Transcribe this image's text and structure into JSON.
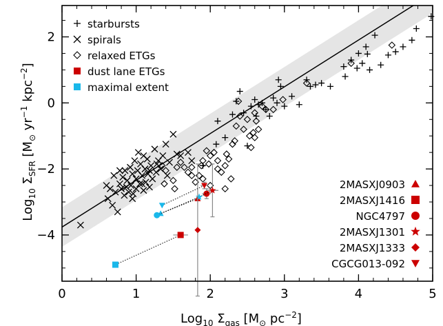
{
  "chart_data": {
    "type": "scatter",
    "title": "",
    "xlabel": {
      "main": "Log",
      "sub": "10",
      "sym": " Σ",
      "symsub": "gas",
      "unit": " [M",
      "odot": "⊙",
      "unit2": " pc",
      "sup": "−2",
      "close": "]"
    },
    "ylabel": {
      "main": "Log",
      "sub": "10",
      "sym": " Σ",
      "symsub": "SFR",
      "unit": " [M",
      "odot": "⊙",
      "unit2": " yr",
      "sup1": "−1",
      "unit3": " kpc",
      "sup2": "−2",
      "close": "]"
    },
    "xlim": [
      0,
      5
    ],
    "ylim": [
      -5.4,
      2.95
    ],
    "xticks": [
      0,
      1,
      2,
      3,
      4,
      5
    ],
    "yticks": [
      -4,
      -2,
      0,
      2
    ],
    "ytick_labels": [
      "−4",
      "−2",
      "0",
      "2"
    ],
    "xticks_minor_step": 0.2,
    "yticks_minor_step": 0.5,
    "fit_line": {
      "x": [
        0,
        5
      ],
      "y": [
        -3.76,
        3.32
      ]
    },
    "scatter_band": {
      "halfwidth": 0.6,
      "color": "#e5e5e5"
    },
    "legend_main": [
      {
        "label": "starbursts",
        "marker": "plus",
        "color": "#000000"
      },
      {
        "label": "spirals",
        "marker": "cross",
        "color": "#000000"
      },
      {
        "label": "relaxed ETGs",
        "marker": "diamond-open",
        "color": "#000000"
      },
      {
        "label": "dust lane ETGs",
        "marker": "square",
        "color": "#cc0000"
      },
      {
        "label": "maximal extent",
        "marker": "square",
        "color": "#1ab8ea"
      }
    ],
    "legend_objects": [
      {
        "label": "2MASXJ0903",
        "marker": "triangle-up"
      },
      {
        "label": "2MASXJ1416",
        "marker": "square"
      },
      {
        "label": "NGC4797",
        "marker": "circle"
      },
      {
        "label": "2MASXJ1301",
        "marker": "star"
      },
      {
        "label": "2MASXJ1333",
        "marker": "diamond"
      },
      {
        "label": "CGCG013-092",
        "marker": "triangle-down"
      }
    ],
    "series": [
      {
        "name": "starbursts",
        "marker": "plus",
        "points": [
          [
            1.9,
            -1.9
          ],
          [
            2.08,
            -1.25
          ],
          [
            2.1,
            -0.55
          ],
          [
            2.2,
            -1.05
          ],
          [
            2.3,
            -0.35
          ],
          [
            2.35,
            0.05
          ],
          [
            2.4,
            0.35
          ],
          [
            2.45,
            -0.3
          ],
          [
            2.5,
            -1.3
          ],
          [
            2.55,
            -0.1
          ],
          [
            2.6,
            0.1
          ],
          [
            2.62,
            -0.4
          ],
          [
            2.65,
            -0.05
          ],
          [
            2.7,
            0.0
          ],
          [
            2.75,
            -0.2
          ],
          [
            2.8,
            -0.4
          ],
          [
            2.85,
            0.15
          ],
          [
            2.9,
            0.0
          ],
          [
            2.92,
            0.7
          ],
          [
            2.95,
            0.5
          ],
          [
            3.0,
            -0.1
          ],
          [
            3.1,
            0.2
          ],
          [
            3.2,
            -0.05
          ],
          [
            3.3,
            0.7
          ],
          [
            3.35,
            0.5
          ],
          [
            3.42,
            0.55
          ],
          [
            3.5,
            0.6
          ],
          [
            3.8,
            1.1
          ],
          [
            3.82,
            0.8
          ],
          [
            3.9,
            1.3
          ],
          [
            4.0,
            1.5
          ],
          [
            4.05,
            1.2
          ],
          [
            4.1,
            1.7
          ],
          [
            4.15,
            1.0
          ],
          [
            4.22,
            2.05
          ],
          [
            4.3,
            1.15
          ],
          [
            4.4,
            1.45
          ],
          [
            4.5,
            1.55
          ],
          [
            4.6,
            1.7
          ],
          [
            4.78,
            2.25
          ],
          [
            4.98,
            2.62
          ],
          [
            3.98,
            1.05
          ],
          [
            4.12,
            1.48
          ],
          [
            3.62,
            0.5
          ],
          [
            4.72,
            1.9
          ]
        ]
      },
      {
        "name": "spirals",
        "marker": "cross",
        "points": [
          [
            0.25,
            -3.7
          ],
          [
            0.6,
            -2.5
          ],
          [
            0.62,
            -2.9
          ],
          [
            0.65,
            -2.6
          ],
          [
            0.68,
            -3.1
          ],
          [
            0.7,
            -2.2
          ],
          [
            0.72,
            -2.7
          ],
          [
            0.75,
            -3.3
          ],
          [
            0.78,
            -2.45
          ],
          [
            0.8,
            -2.6
          ],
          [
            0.82,
            -2.25
          ],
          [
            0.84,
            -2.8
          ],
          [
            0.85,
            -2.05
          ],
          [
            0.87,
            -2.55
          ],
          [
            0.88,
            -2.35
          ],
          [
            0.9,
            -2.7
          ],
          [
            0.92,
            -1.95
          ],
          [
            0.93,
            -2.5
          ],
          [
            0.95,
            -2.15
          ],
          [
            0.96,
            -2.75
          ],
          [
            0.98,
            -1.75
          ],
          [
            1.0,
            -2.3
          ],
          [
            1.0,
            -2.6
          ],
          [
            1.02,
            -2.05
          ],
          [
            1.03,
            -1.5
          ],
          [
            1.05,
            -2.45
          ],
          [
            1.06,
            -1.85
          ],
          [
            1.08,
            -2.2
          ],
          [
            1.1,
            -2.65
          ],
          [
            1.1,
            -1.6
          ],
          [
            1.12,
            -2.0
          ],
          [
            1.13,
            -2.4
          ],
          [
            1.15,
            -1.7
          ],
          [
            1.16,
            -2.15
          ],
          [
            1.18,
            -2.55
          ],
          [
            1.2,
            -1.9
          ],
          [
            1.22,
            -2.3
          ],
          [
            1.25,
            -1.4
          ],
          [
            1.27,
            -2.1
          ],
          [
            1.3,
            -1.75
          ],
          [
            1.33,
            -2.0
          ],
          [
            1.36,
            -1.6
          ],
          [
            1.4,
            -1.25
          ],
          [
            1.42,
            -2.2
          ],
          [
            1.45,
            -1.8
          ],
          [
            1.5,
            -0.95
          ],
          [
            1.55,
            -1.55
          ],
          [
            1.6,
            -1.6
          ],
          [
            1.7,
            -1.5
          ],
          [
            1.75,
            -1.75
          ],
          [
            0.78,
            -2.05
          ],
          [
            0.95,
            -2.9
          ],
          [
            1.08,
            -2.45
          ],
          [
            1.18,
            -2.05
          ],
          [
            1.28,
            -1.85
          ]
        ]
      },
      {
        "name": "relaxed ETGs",
        "marker": "diamond-open",
        "points": [
          [
            1.35,
            -1.9
          ],
          [
            1.4,
            -2.05
          ],
          [
            1.5,
            -2.35
          ],
          [
            1.55,
            -1.95
          ],
          [
            1.6,
            -1.8
          ],
          [
            1.65,
            -1.95
          ],
          [
            1.7,
            -2.1
          ],
          [
            1.75,
            -1.95
          ],
          [
            1.8,
            -2.4
          ],
          [
            1.85,
            -2.2
          ],
          [
            1.88,
            -1.9
          ],
          [
            1.9,
            -1.75
          ],
          [
            1.95,
            -1.45
          ],
          [
            1.98,
            -1.85
          ],
          [
            2.0,
            -1.6
          ],
          [
            2.05,
            -1.5
          ],
          [
            2.1,
            -1.75
          ],
          [
            2.15,
            -2.1
          ],
          [
            2.2,
            -1.9
          ],
          [
            2.25,
            -1.7
          ],
          [
            2.28,
            -2.3
          ],
          [
            2.3,
            -1.25
          ],
          [
            2.33,
            -1.15
          ],
          [
            2.35,
            -0.7
          ],
          [
            2.38,
            0.05
          ],
          [
            2.4,
            -0.4
          ],
          [
            2.45,
            -0.8
          ],
          [
            2.5,
            -0.5
          ],
          [
            2.53,
            -1.0
          ],
          [
            2.55,
            -1.35
          ],
          [
            2.58,
            -0.9
          ],
          [
            2.6,
            -0.3
          ],
          [
            2.62,
            -0.55
          ],
          [
            2.65,
            -0.8
          ],
          [
            2.7,
            -0.1
          ],
          [
            2.75,
            -0.2
          ],
          [
            2.85,
            -0.2
          ],
          [
            2.98,
            0.1
          ],
          [
            3.3,
            0.6
          ],
          [
            3.9,
            1.2
          ],
          [
            4.45,
            1.75
          ],
          [
            1.38,
            -2.45
          ],
          [
            1.52,
            -2.6
          ],
          [
            1.9,
            -2.3
          ],
          [
            2.1,
            -2.0
          ],
          [
            2.0,
            -2.5
          ],
          [
            2.2,
            -2.6
          ],
          [
            2.22,
            -1.55
          ],
          [
            2.6,
            -1.05
          ],
          [
            1.75,
            -2.2
          ]
        ]
      }
    ],
    "objects": [
      {
        "name": "2MASXJ0903",
        "marker": "triangle-up",
        "x": 1.83,
        "y": -2.9,
        "xerr": 0.0,
        "yerr": 0.0,
        "max_x": 1.33,
        "max_y": -3.35
      },
      {
        "name": "2MASXJ1416",
        "marker": "square",
        "x": 1.6,
        "y": -4.0,
        "xerr": 0.1,
        "yerr": 0.0,
        "max_x": 0.72,
        "max_y": -4.9
      },
      {
        "name": "NGC4797",
        "marker": "circle",
        "x": 1.95,
        "y": -2.75,
        "xerr": 0.06,
        "yerr": 0.15,
        "max_x": 1.28,
        "max_y": -3.4
      },
      {
        "name": "2MASXJ1301",
        "marker": "star",
        "x": 2.03,
        "y": -2.65,
        "xerr": 0.08,
        "yerr": 0.8,
        "max_x": 1.85,
        "max_y": -2.85
      },
      {
        "name": "2MASXJ1333",
        "marker": "diamond",
        "x": 1.83,
        "y": -3.85,
        "xerr": 0.0,
        "yerr": 2.0,
        "max_x": null,
        "max_y": null
      },
      {
        "name": "CGCG013-092",
        "marker": "triangle-down",
        "x": 1.92,
        "y": -2.5,
        "xerr": 0.05,
        "yerr": 0.1,
        "max_x": 1.35,
        "max_y": -3.1
      }
    ],
    "colors": {
      "dust_lane": "#cc0000",
      "maximal_extent": "#1ab8ea",
      "errorbar": "#888888",
      "band": "#e5e5e5"
    }
  }
}
